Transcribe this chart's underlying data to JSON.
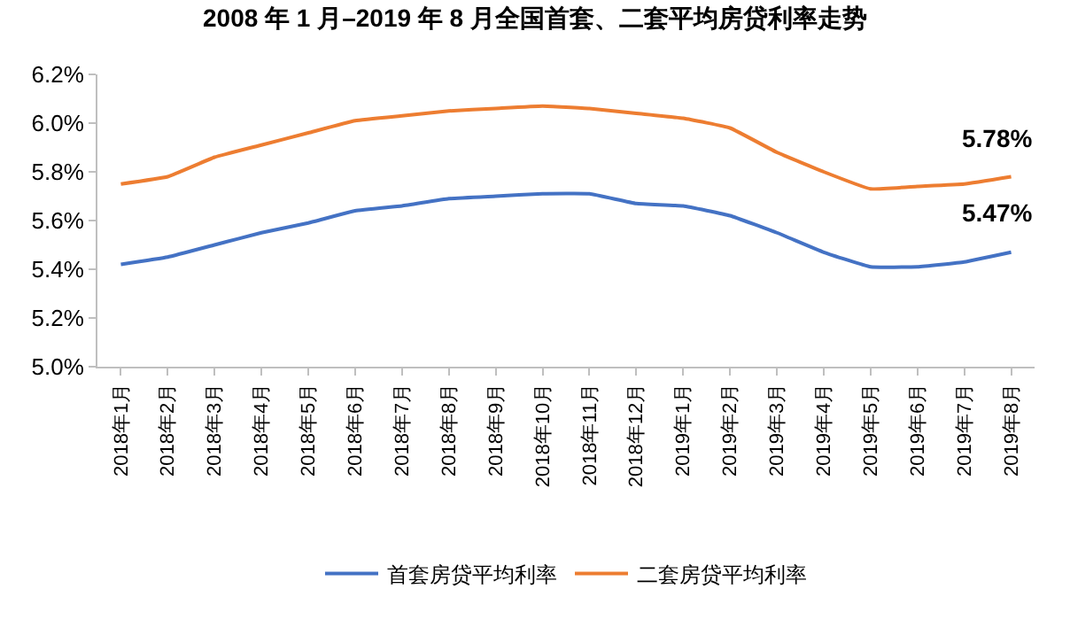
{
  "chart_data": {
    "type": "line",
    "title": "2008 年 1 月–2019 年 8 月全国首套、二套平均房贷利率走势",
    "categories": [
      "2018年1月",
      "2018年2月",
      "2018年3月",
      "2018年4月",
      "2018年5月",
      "2018年6月",
      "2018年7月",
      "2018年8月",
      "2018年9月",
      "2018年10月",
      "2018年11月",
      "2018年12月",
      "2019年1月",
      "2019年2月",
      "2019年3月",
      "2019年4月",
      "2019年5月",
      "2019年6月",
      "2019年7月",
      "2019年8月"
    ],
    "series": [
      {
        "name": "首套房贷平均利率",
        "color": "#4472c4",
        "values": [
          5.42,
          5.45,
          5.5,
          5.55,
          5.59,
          5.64,
          5.66,
          5.69,
          5.7,
          5.71,
          5.71,
          5.67,
          5.66,
          5.62,
          5.55,
          5.47,
          5.41,
          5.41,
          5.43,
          5.47
        ],
        "value_labels": [
          null,
          null,
          null,
          null,
          null,
          null,
          null,
          null,
          null,
          null,
          null,
          null,
          null,
          null,
          null,
          null,
          null,
          null,
          null,
          "5.47%"
        ]
      },
      {
        "name": "二套房贷平均利率",
        "color": "#ed7d31",
        "values": [
          5.75,
          5.78,
          5.86,
          5.91,
          5.96,
          6.01,
          6.03,
          6.05,
          6.06,
          6.07,
          6.06,
          6.04,
          6.02,
          5.98,
          5.88,
          5.8,
          5.73,
          5.74,
          5.75,
          5.78
        ],
        "value_labels": [
          null,
          null,
          null,
          null,
          null,
          null,
          null,
          null,
          null,
          null,
          null,
          null,
          null,
          null,
          null,
          null,
          null,
          null,
          null,
          "5.78%"
        ]
      }
    ],
    "ylim": [
      5.0,
      6.2
    ],
    "yticks": [
      {
        "value": 5.0,
        "label": "5.0%"
      },
      {
        "value": 5.2,
        "label": "5.2%"
      },
      {
        "value": 5.4,
        "label": "5.4%"
      },
      {
        "value": 5.6,
        "label": "5.6%"
      },
      {
        "value": 5.8,
        "label": "5.8%"
      },
      {
        "value": 6.0,
        "label": "6.0%"
      },
      {
        "value": 6.2,
        "label": "6.2%"
      }
    ],
    "legend": "bottom",
    "marker": "none",
    "line_style": "solid"
  }
}
